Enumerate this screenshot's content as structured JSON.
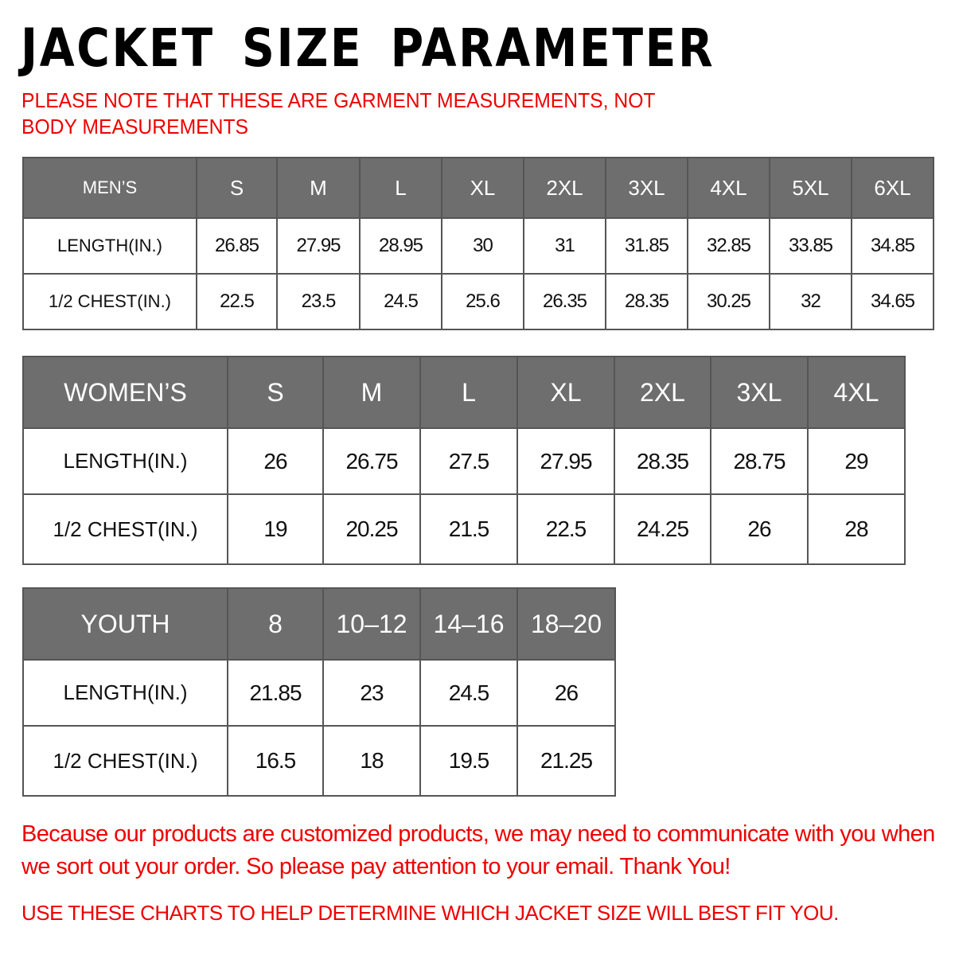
{
  "title": "JACKET SIZE PARAMETER",
  "note": "PLEASE NOTE THAT THESE ARE GARMENT MEASUREMENTS, NOT BODY MEASUREMENTS",
  "tables": {
    "men": {
      "header": [
        "MEN’S",
        "S",
        "M",
        "L",
        "XL",
        "2XL",
        "3XL",
        "4XL",
        "5XL",
        "6XL"
      ],
      "rows": [
        [
          "LENGTH(IN.)",
          "26.85",
          "27.95",
          "28.95",
          "30",
          "31",
          "31.85",
          "32.85",
          "33.85",
          "34.85"
        ],
        [
          "1/2 CHEST(IN.)",
          "22.5",
          "23.5",
          "24.5",
          "25.6",
          "26.35",
          "28.35",
          "30.25",
          "32",
          "34.65"
        ]
      ]
    },
    "women": {
      "header": [
        "WOMEN’S",
        "S",
        "M",
        "L",
        "XL",
        "2XL",
        "3XL",
        "4XL"
      ],
      "rows": [
        [
          "LENGTH(IN.)",
          "26",
          "26.75",
          "27.5",
          "27.95",
          "28.35",
          "28.75",
          "29"
        ],
        [
          "1/2 CHEST(IN.)",
          "19",
          "20.25",
          "21.5",
          "22.5",
          "24.25",
          "26",
          "28"
        ]
      ]
    },
    "youth": {
      "header": [
        "YOUTH",
        "8",
        "10–12",
        "14–16",
        "18–20"
      ],
      "rows": [
        [
          "LENGTH(IN.)",
          "21.85",
          "23",
          "24.5",
          "26"
        ],
        [
          "1/2 CHEST(IN.)",
          "16.5",
          "18",
          "19.5",
          "21.25"
        ]
      ]
    }
  },
  "footer": {
    "message": "Because our products are customized products, we may need to communicate with you when we sort out your order. So please pay attention to your email. Thank You!",
    "advice": "USE THESE CHARTS TO HELP DETERMINE WHICH JACKET SIZE WILL BEST FIT YOU."
  },
  "colors": {
    "header_bg": "#6e6e6e",
    "accent_red": "#ee0000"
  }
}
